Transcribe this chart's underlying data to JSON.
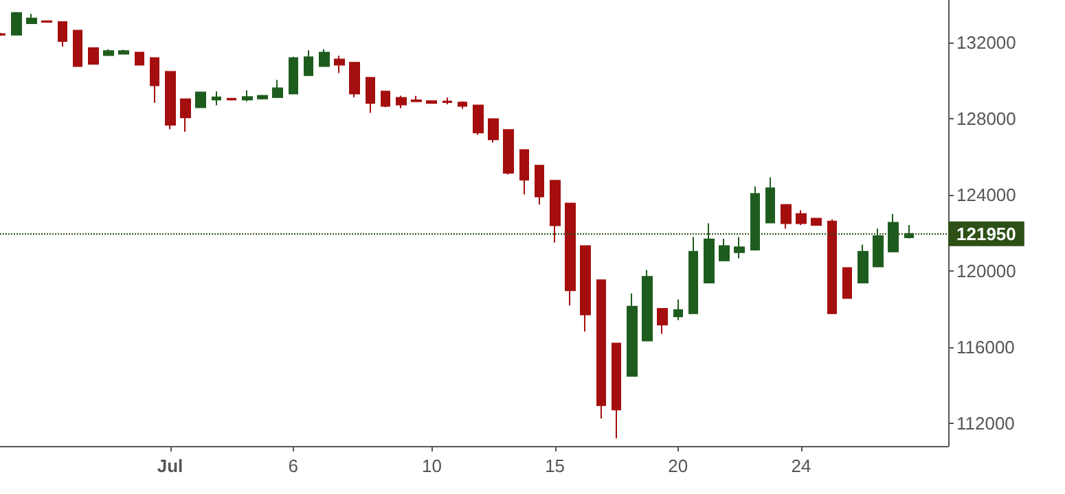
{
  "chart_data": {
    "type": "candlestick",
    "categories": [
      null,
      null,
      null,
      null,
      null,
      null,
      null,
      null,
      null,
      null,
      null,
      "Jul",
      null,
      null,
      null,
      null,
      null,
      null,
      null,
      "6",
      null,
      null,
      null,
      null,
      null,
      null,
      null,
      null,
      "10",
      null,
      null,
      null,
      null,
      null,
      null,
      null,
      "15",
      null,
      null,
      null,
      null,
      null,
      null,
      null,
      "20",
      null,
      null,
      null,
      null,
      null,
      null,
      null,
      "24",
      null,
      null,
      null,
      null,
      null,
      null,
      null
    ],
    "series": [
      {
        "colors": [
          "#a50e0e",
          "#1e5c1e",
          "#1e5c1e",
          "#a50e0e",
          "#a50e0e",
          "#a50e0e",
          "#a50e0e",
          "#1e5c1e",
          "#1e5c1e",
          "#a50e0e",
          "#a50e0e",
          "#a50e0e",
          "#a50e0e",
          "#1e5c1e",
          "#1e5c1e",
          "#a50e0e",
          "#1e5c1e",
          "#1e5c1e",
          "#1e5c1e",
          "#1e5c1e",
          "#1e5c1e",
          "#1e5c1e",
          "#a50e0e",
          "#a50e0e",
          "#a50e0e",
          "#a50e0e",
          "#a50e0e",
          "#a50e0e",
          "#a50e0e",
          "#a50e0e",
          "#a50e0e",
          "#a50e0e",
          "#a50e0e",
          "#a50e0e",
          "#a50e0e",
          "#a50e0e",
          "#a50e0e",
          "#a50e0e",
          "#a50e0e",
          "#a50e0e",
          "#a50e0e",
          "#1e5c1e",
          "#1e5c1e",
          "#a50e0e",
          "#1e5c1e",
          "#1e5c1e",
          "#1e5c1e",
          "#1e5c1e",
          "#1e5c1e",
          "#1e5c1e",
          "#1e5c1e",
          "#a50e0e",
          "#a50e0e",
          "#a50e0e",
          "#a50e0e",
          "#a50e0e",
          "#1e5c1e",
          "#1e5c1e",
          "#1e5c1e",
          "#1e5c1e"
        ],
        "ohlc": [
          [
            132450,
            132500,
            132350,
            132400
          ],
          [
            132400,
            133600,
            132400,
            133550
          ],
          [
            133000,
            133500,
            132990,
            133270
          ],
          [
            133120,
            133150,
            133050,
            133080
          ],
          [
            133080,
            133100,
            131780,
            132070
          ],
          [
            132630,
            132630,
            130750,
            130750
          ],
          [
            131710,
            131710,
            130870,
            130870
          ],
          [
            131330,
            131640,
            131300,
            131550
          ],
          [
            131400,
            131620,
            131380,
            131550
          ],
          [
            131470,
            131470,
            130820,
            130820
          ],
          [
            131180,
            131200,
            128830,
            129740
          ],
          [
            130460,
            130500,
            127440,
            127670
          ],
          [
            129020,
            129050,
            127310,
            128060
          ],
          [
            128590,
            129400,
            128590,
            129380
          ],
          [
            128990,
            129430,
            128700,
            129120
          ],
          [
            129050,
            129060,
            128950,
            128990
          ],
          [
            128990,
            129480,
            128900,
            129140
          ],
          [
            129050,
            129250,
            129000,
            129200
          ],
          [
            129120,
            130030,
            129100,
            129600
          ],
          [
            129310,
            131250,
            129310,
            131180
          ],
          [
            130270,
            131590,
            130270,
            131230
          ],
          [
            130750,
            131640,
            130750,
            131470
          ],
          [
            131110,
            131300,
            130390,
            130820
          ],
          [
            130940,
            130940,
            129120,
            129310
          ],
          [
            130150,
            130150,
            128300,
            128810
          ],
          [
            129430,
            129430,
            128600,
            128660
          ],
          [
            129090,
            129200,
            128540,
            128730
          ],
          [
            128900,
            129190,
            128880,
            128970
          ],
          [
            128920,
            128950,
            128780,
            128810
          ],
          [
            128900,
            129100,
            128750,
            128860
          ],
          [
            128850,
            128900,
            128520,
            128660
          ],
          [
            128700,
            128700,
            127150,
            127260
          ],
          [
            127980,
            127980,
            126740,
            126900
          ],
          [
            127410,
            127410,
            125060,
            125150
          ],
          [
            126350,
            126350,
            124020,
            124790
          ],
          [
            125530,
            125530,
            123490,
            123900
          ],
          [
            124740,
            124740,
            121490,
            122390
          ],
          [
            123540,
            123540,
            118180,
            118970
          ],
          [
            121310,
            121310,
            116810,
            117700
          ],
          [
            119510,
            119510,
            112240,
            112940
          ],
          [
            116190,
            116190,
            111210,
            112710
          ],
          [
            114480,
            118810,
            114480,
            118130
          ],
          [
            116330,
            120050,
            116330,
            119690
          ],
          [
            118010,
            118010,
            116690,
            117170
          ],
          [
            117600,
            118500,
            117410,
            117950
          ],
          [
            117770,
            121780,
            117770,
            121010
          ],
          [
            119380,
            122500,
            119380,
            121660
          ],
          [
            120540,
            121690,
            120540,
            121310
          ],
          [
            120970,
            121780,
            120660,
            121240
          ],
          [
            121110,
            124430,
            121110,
            124050
          ],
          [
            122530,
            124910,
            122530,
            124340
          ],
          [
            123470,
            123470,
            122220,
            122500
          ],
          [
            122990,
            123180,
            122410,
            122500
          ],
          [
            122750,
            122750,
            122410,
            122410
          ],
          [
            122600,
            122700,
            117770,
            117770
          ],
          [
            120150,
            120150,
            118570,
            118570
          ],
          [
            119380,
            121380,
            119380,
            121010
          ],
          [
            120230,
            122220,
            120230,
            121830
          ],
          [
            121010,
            122990,
            121010,
            122530
          ],
          [
            121760,
            122410,
            121700,
            121950
          ]
        ]
      }
    ],
    "ylim": [
      110800,
      134230
    ],
    "yticks": [
      112000,
      116000,
      120000,
      124000,
      128000,
      132000
    ],
    "grid": false,
    "ref_lines": [
      {
        "axis": "y",
        "value": 121950,
        "label": "121950",
        "color": "#2d5016",
        "line_style": "dotted"
      }
    ]
  }
}
